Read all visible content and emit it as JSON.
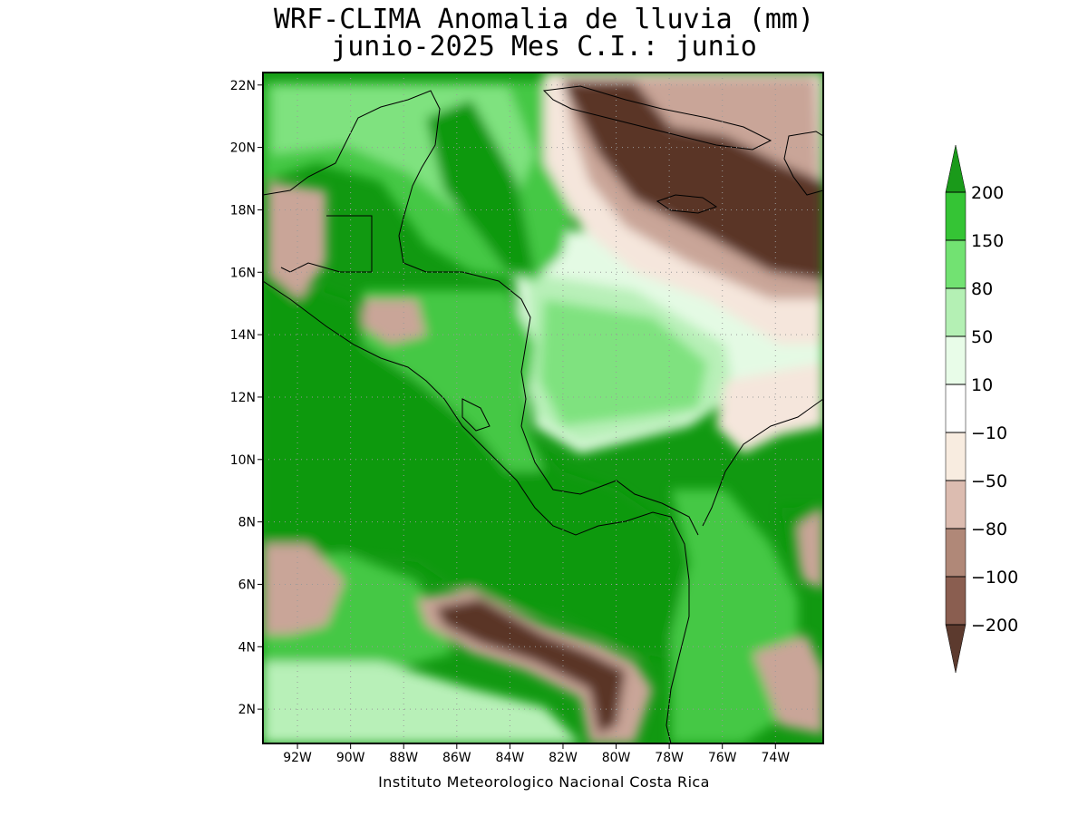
{
  "title_line1": "WRF-CLIMA Anomalia de lluvia (mm)",
  "title_line2": "junio-2025 Mes C.I.: junio",
  "footer": "Instituto Meteorologico Nacional Costa Rica",
  "map": {
    "lon_range": [
      -93.3,
      -72.2
    ],
    "lat_range": [
      0.9,
      22.4
    ],
    "x_tick_labels": [
      "92W",
      "90W",
      "88W",
      "86W",
      "84W",
      "82W",
      "80W",
      "78W",
      "76W",
      "74W"
    ],
    "x_tick_values": [
      -92,
      -90,
      -88,
      -86,
      -84,
      -82,
      -80,
      -78,
      -76,
      -74
    ],
    "y_tick_labels": [
      "2N",
      "4N",
      "6N",
      "8N",
      "10N",
      "12N",
      "14N",
      "16N",
      "18N",
      "20N",
      "22N"
    ],
    "y_tick_values": [
      2,
      4,
      6,
      8,
      10,
      12,
      14,
      16,
      18,
      20,
      22
    ],
    "grid": "dotted"
  },
  "colorbar": {
    "labels": [
      "200",
      "150",
      "80",
      "50",
      "10",
      "−10",
      "−50",
      "−80",
      "−100",
      "−200"
    ],
    "colors": [
      "#1a9a1a",
      "#35c435",
      "#72e272",
      "#b4f0b4",
      "#e8fce8",
      "#ffffff",
      "#f8ece0",
      "#dcbcb0",
      "#b08878",
      "#8a5e50",
      "#5c3a2e"
    ],
    "levels": [
      200,
      150,
      80,
      50,
      10,
      -10,
      -50,
      -80,
      -100,
      -200
    ]
  },
  "fill_colors": {
    "strong_wet": "#119911",
    "wet": "#45c845",
    "moderate_wet": "#7fe27f",
    "light_wet": "#b8f0b8",
    "very_light_wet": "#e4fae4",
    "neutral": "#ffffff",
    "light_dry": "#f5e6dc",
    "dry": "#c9a598",
    "strong_dry": "#7a5244",
    "very_dry": "#5a3428"
  }
}
